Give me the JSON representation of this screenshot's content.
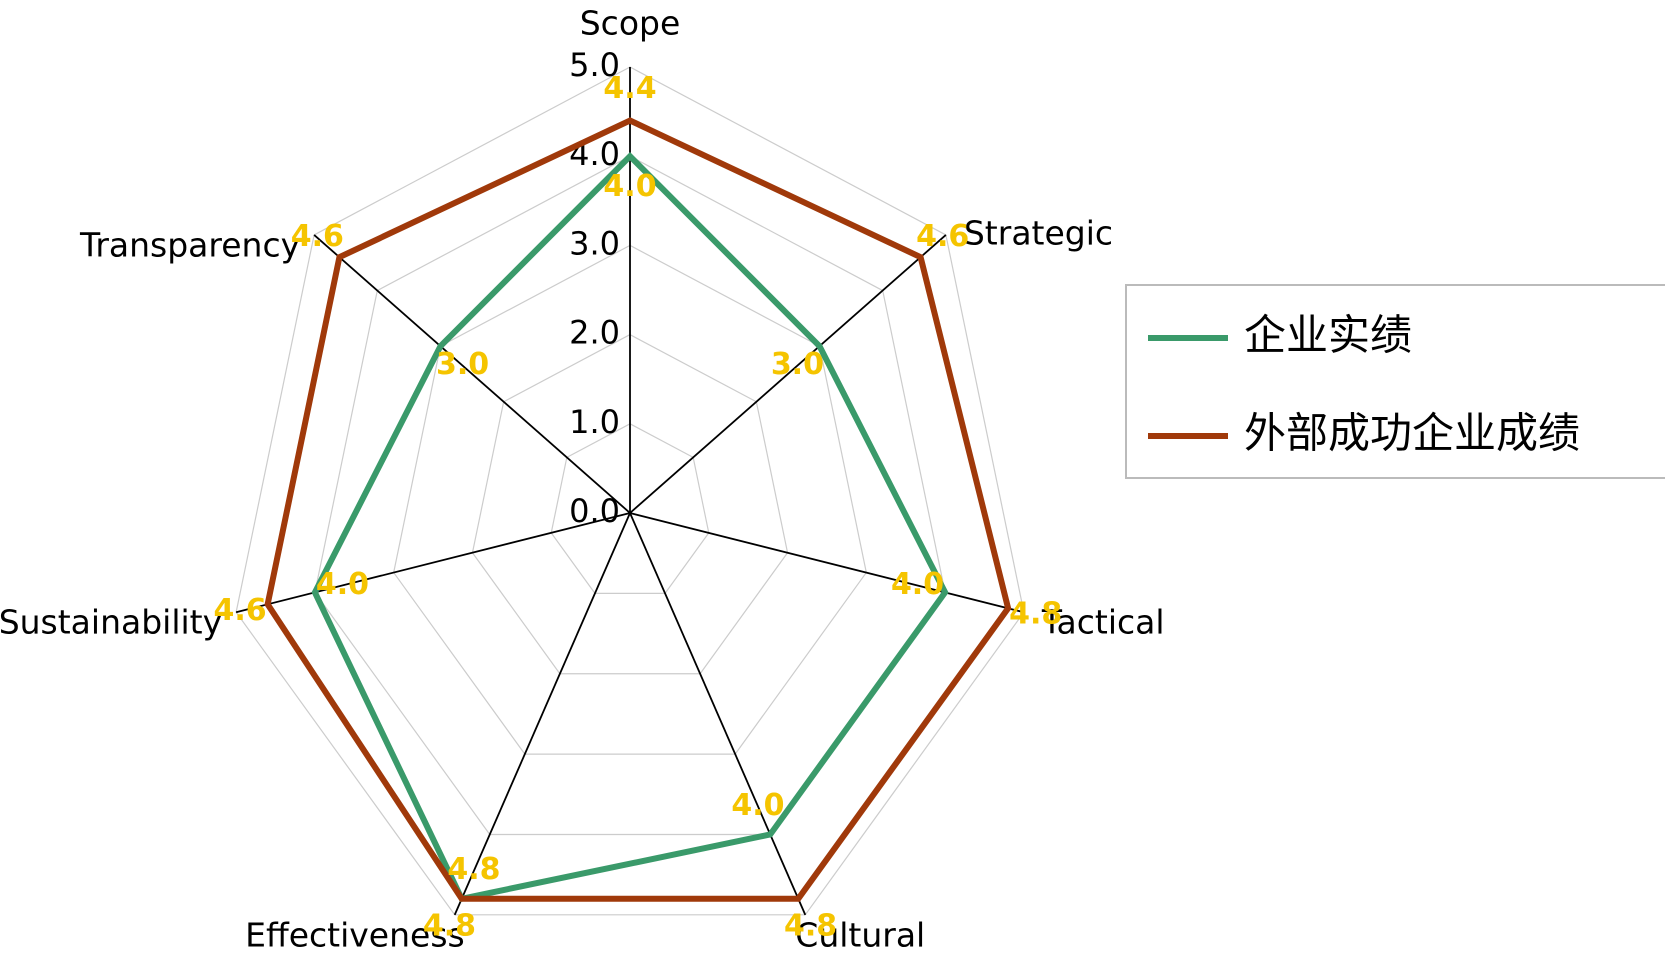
{
  "chart_data": {
    "type": "radar",
    "categories": [
      "Scope",
      "Strategic",
      "Tactical",
      "Cultural",
      "Effectiveness",
      "Sustainability",
      "Transparency"
    ],
    "series": [
      {
        "name": "企业实绩",
        "color": "#3a9a6a",
        "values": [
          4.0,
          3.0,
          4.0,
          4.0,
          4.8,
          4.0,
          3.0
        ],
        "value_labels": [
          "4.0",
          "3.0",
          "4.0",
          "4.0",
          "4.8",
          "4.0",
          "3.0"
        ]
      },
      {
        "name": "外部成功企业成绩",
        "color": "#a0390a",
        "values": [
          4.4,
          4.6,
          4.8,
          4.8,
          4.8,
          4.6,
          4.6
        ],
        "value_labels": [
          "4.4",
          "4.6",
          "4.8",
          "4.8",
          "4.8",
          "4.6",
          "4.6"
        ]
      }
    ],
    "ylim": [
      0,
      5
    ],
    "yticks": [
      {
        "value": 0,
        "label": "0.0"
      },
      {
        "value": 1,
        "label": "1.0"
      },
      {
        "value": 2,
        "label": "2.0"
      },
      {
        "value": 3,
        "label": "3.0"
      },
      {
        "value": 4,
        "label": "4.0"
      },
      {
        "value": 5,
        "label": "5.0"
      }
    ],
    "grid": true,
    "legend": "right"
  }
}
